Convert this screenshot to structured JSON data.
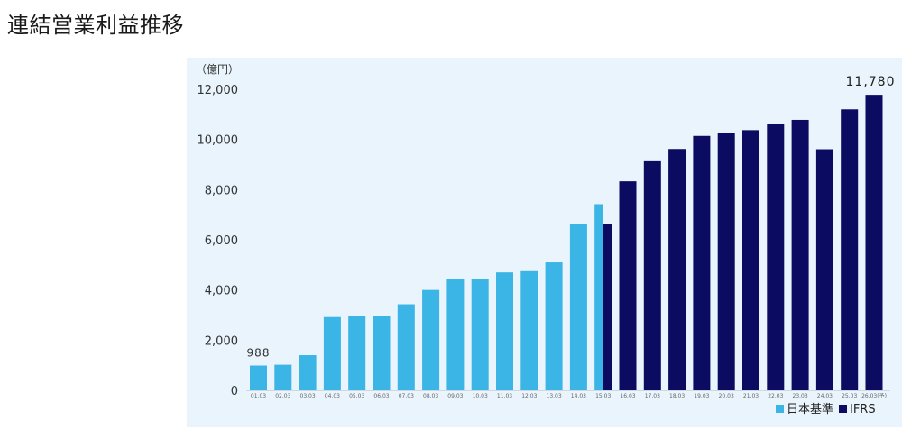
{
  "page": {
    "title": "連結営業利益推移"
  },
  "chart_data": {
    "type": "bar",
    "unit_label": "（億円）",
    "ylim": [
      0,
      12000
    ],
    "yticks": [
      "0",
      "2,000",
      "4,000",
      "6,000",
      "8,000",
      "10,000",
      "12,000"
    ],
    "yticks_values": [
      0,
      2000,
      4000,
      6000,
      8000,
      10000,
      12000
    ],
    "categories": [
      "01.03",
      "02.03",
      "03.03",
      "04.03",
      "05.03",
      "06.03",
      "07.03",
      "08.03",
      "09.03",
      "10.03",
      "11.03",
      "12.03",
      "13.03",
      "14.03",
      "15.03",
      "16.03",
      "17.03",
      "18.03",
      "19.03",
      "20.03",
      "21.03",
      "22.03",
      "23.03",
      "24.03",
      "25.03",
      "26.03(予)"
    ],
    "series": [
      {
        "name": "日本基準",
        "color": "#3bb4e6",
        "values": [
          988,
          1020,
          1400,
          2920,
          2950,
          2950,
          3430,
          4000,
          4420,
          4430,
          4700,
          4750,
          5100,
          6630,
          7420,
          null,
          null,
          null,
          null,
          null,
          null,
          null,
          null,
          null,
          null,
          null
        ]
      },
      {
        "name": "IFRS",
        "color": "#0b0b61",
        "values": [
          null,
          null,
          null,
          null,
          null,
          null,
          null,
          null,
          null,
          null,
          null,
          null,
          null,
          null,
          6640,
          8330,
          9130,
          9620,
          10140,
          10240,
          10370,
          10610,
          10780,
          9610,
          11200,
          11780
        ]
      }
    ],
    "data_labels": [
      {
        "category": "01.03",
        "text": "988"
      },
      {
        "category": "26.03(予)",
        "text": "11,780"
      }
    ],
    "legend": {
      "position": "bottom-right",
      "entries": [
        "日本基準",
        "IFRS"
      ]
    },
    "grid": false
  }
}
